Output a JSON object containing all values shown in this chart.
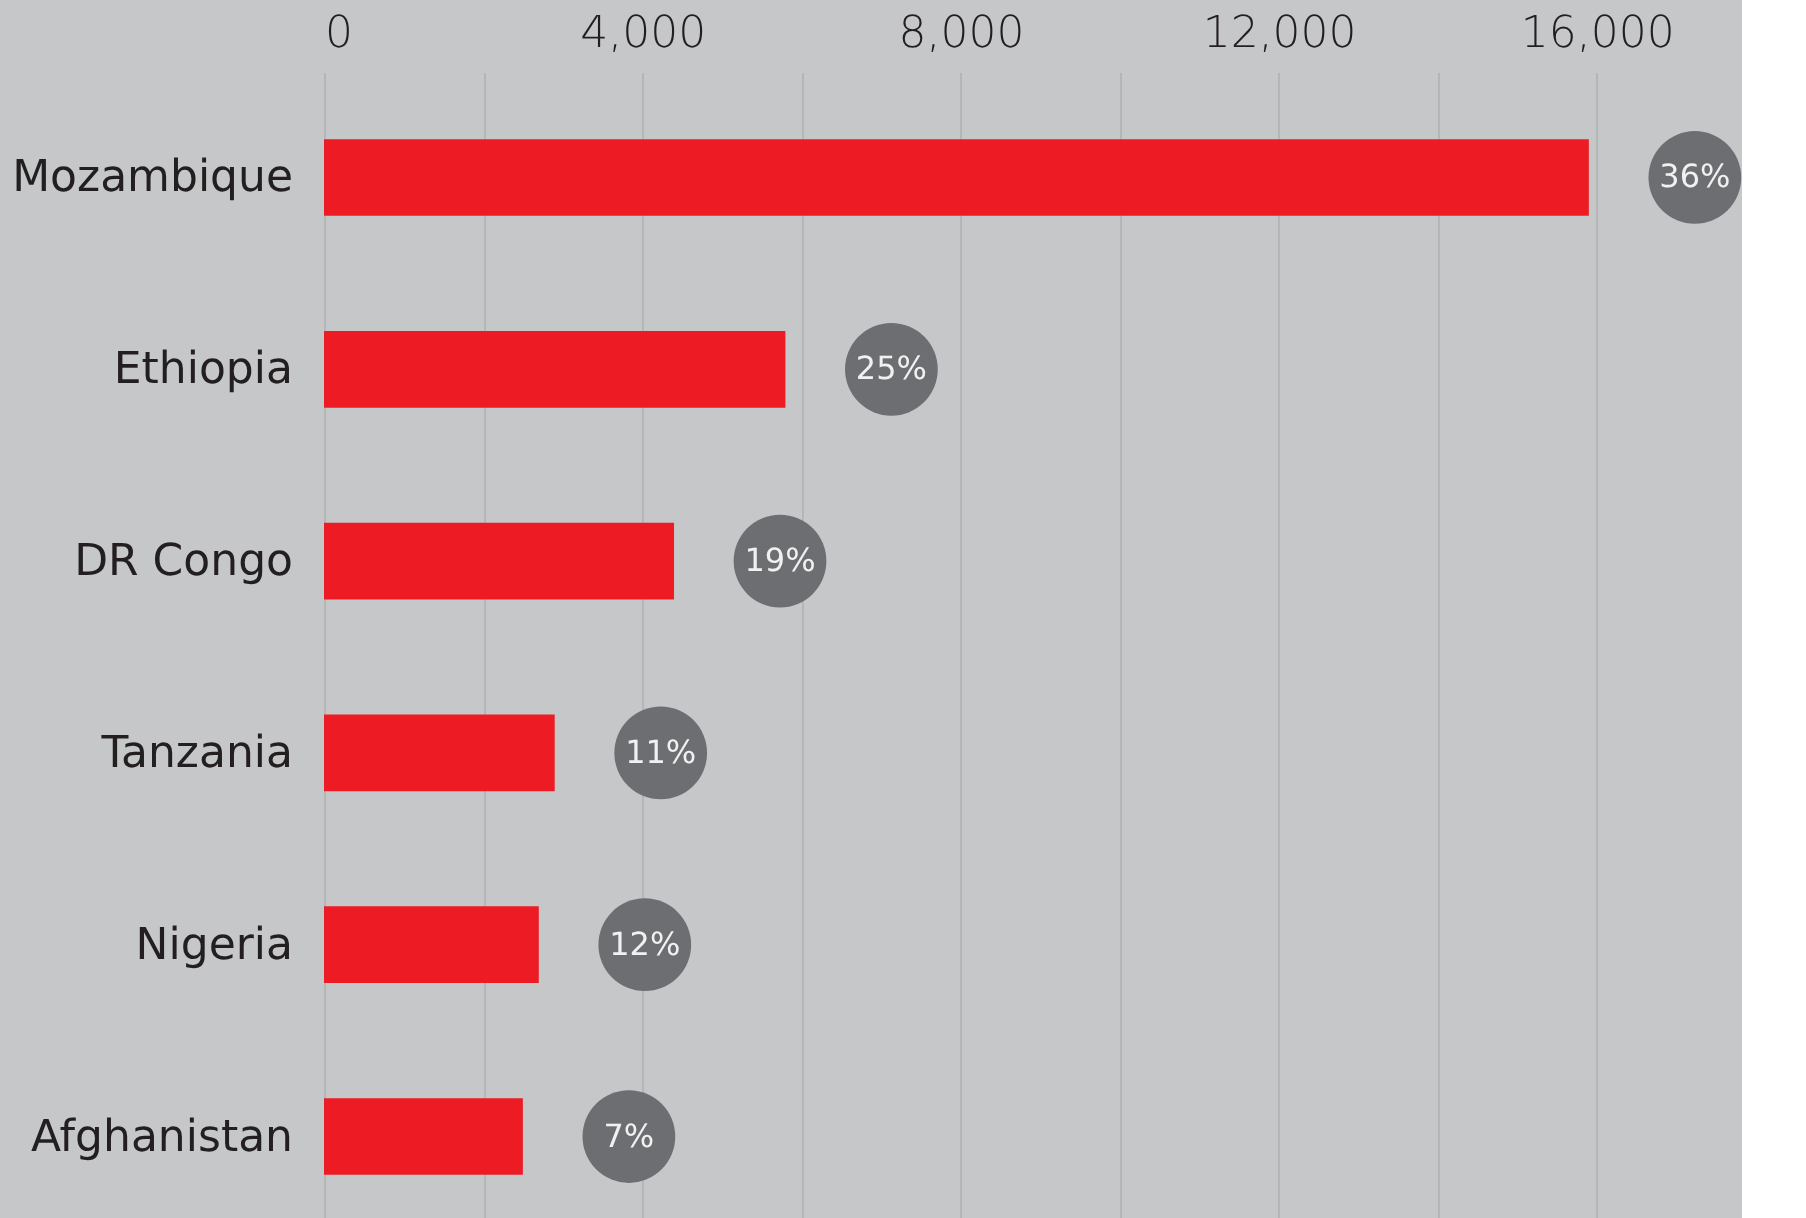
{
  "chart_data": {
    "type": "bar",
    "orientation": "horizontal",
    "categories": [
      "Mozambique",
      "Ethiopia",
      "DR Congo",
      "Tanzania",
      "Nigeria",
      "Afghanistan"
    ],
    "values": [
      15900,
      5800,
      4400,
      2900,
      2700,
      2500
    ],
    "color": "#ed1c24",
    "xlim": [
      0,
      17800
    ],
    "xticks": [
      0,
      {
        "value": 2000,
        "label": null
      },
      {
        "value": 4000,
        "label": "4,000"
      },
      {
        "value": 6000,
        "label": null
      },
      {
        "value": 8000,
        "label": "8,000"
      },
      {
        "value": 10000,
        "label": null
      },
      {
        "value": 12000,
        "label": "12,000"
      },
      {
        "value": 14000,
        "label": null
      },
      {
        "value": 16000,
        "label": "16,000"
      }
    ],
    "grid": "x",
    "annotations": [
      "36%",
      "25%",
      "19%",
      "11%",
      "12%",
      "7%"
    ]
  }
}
